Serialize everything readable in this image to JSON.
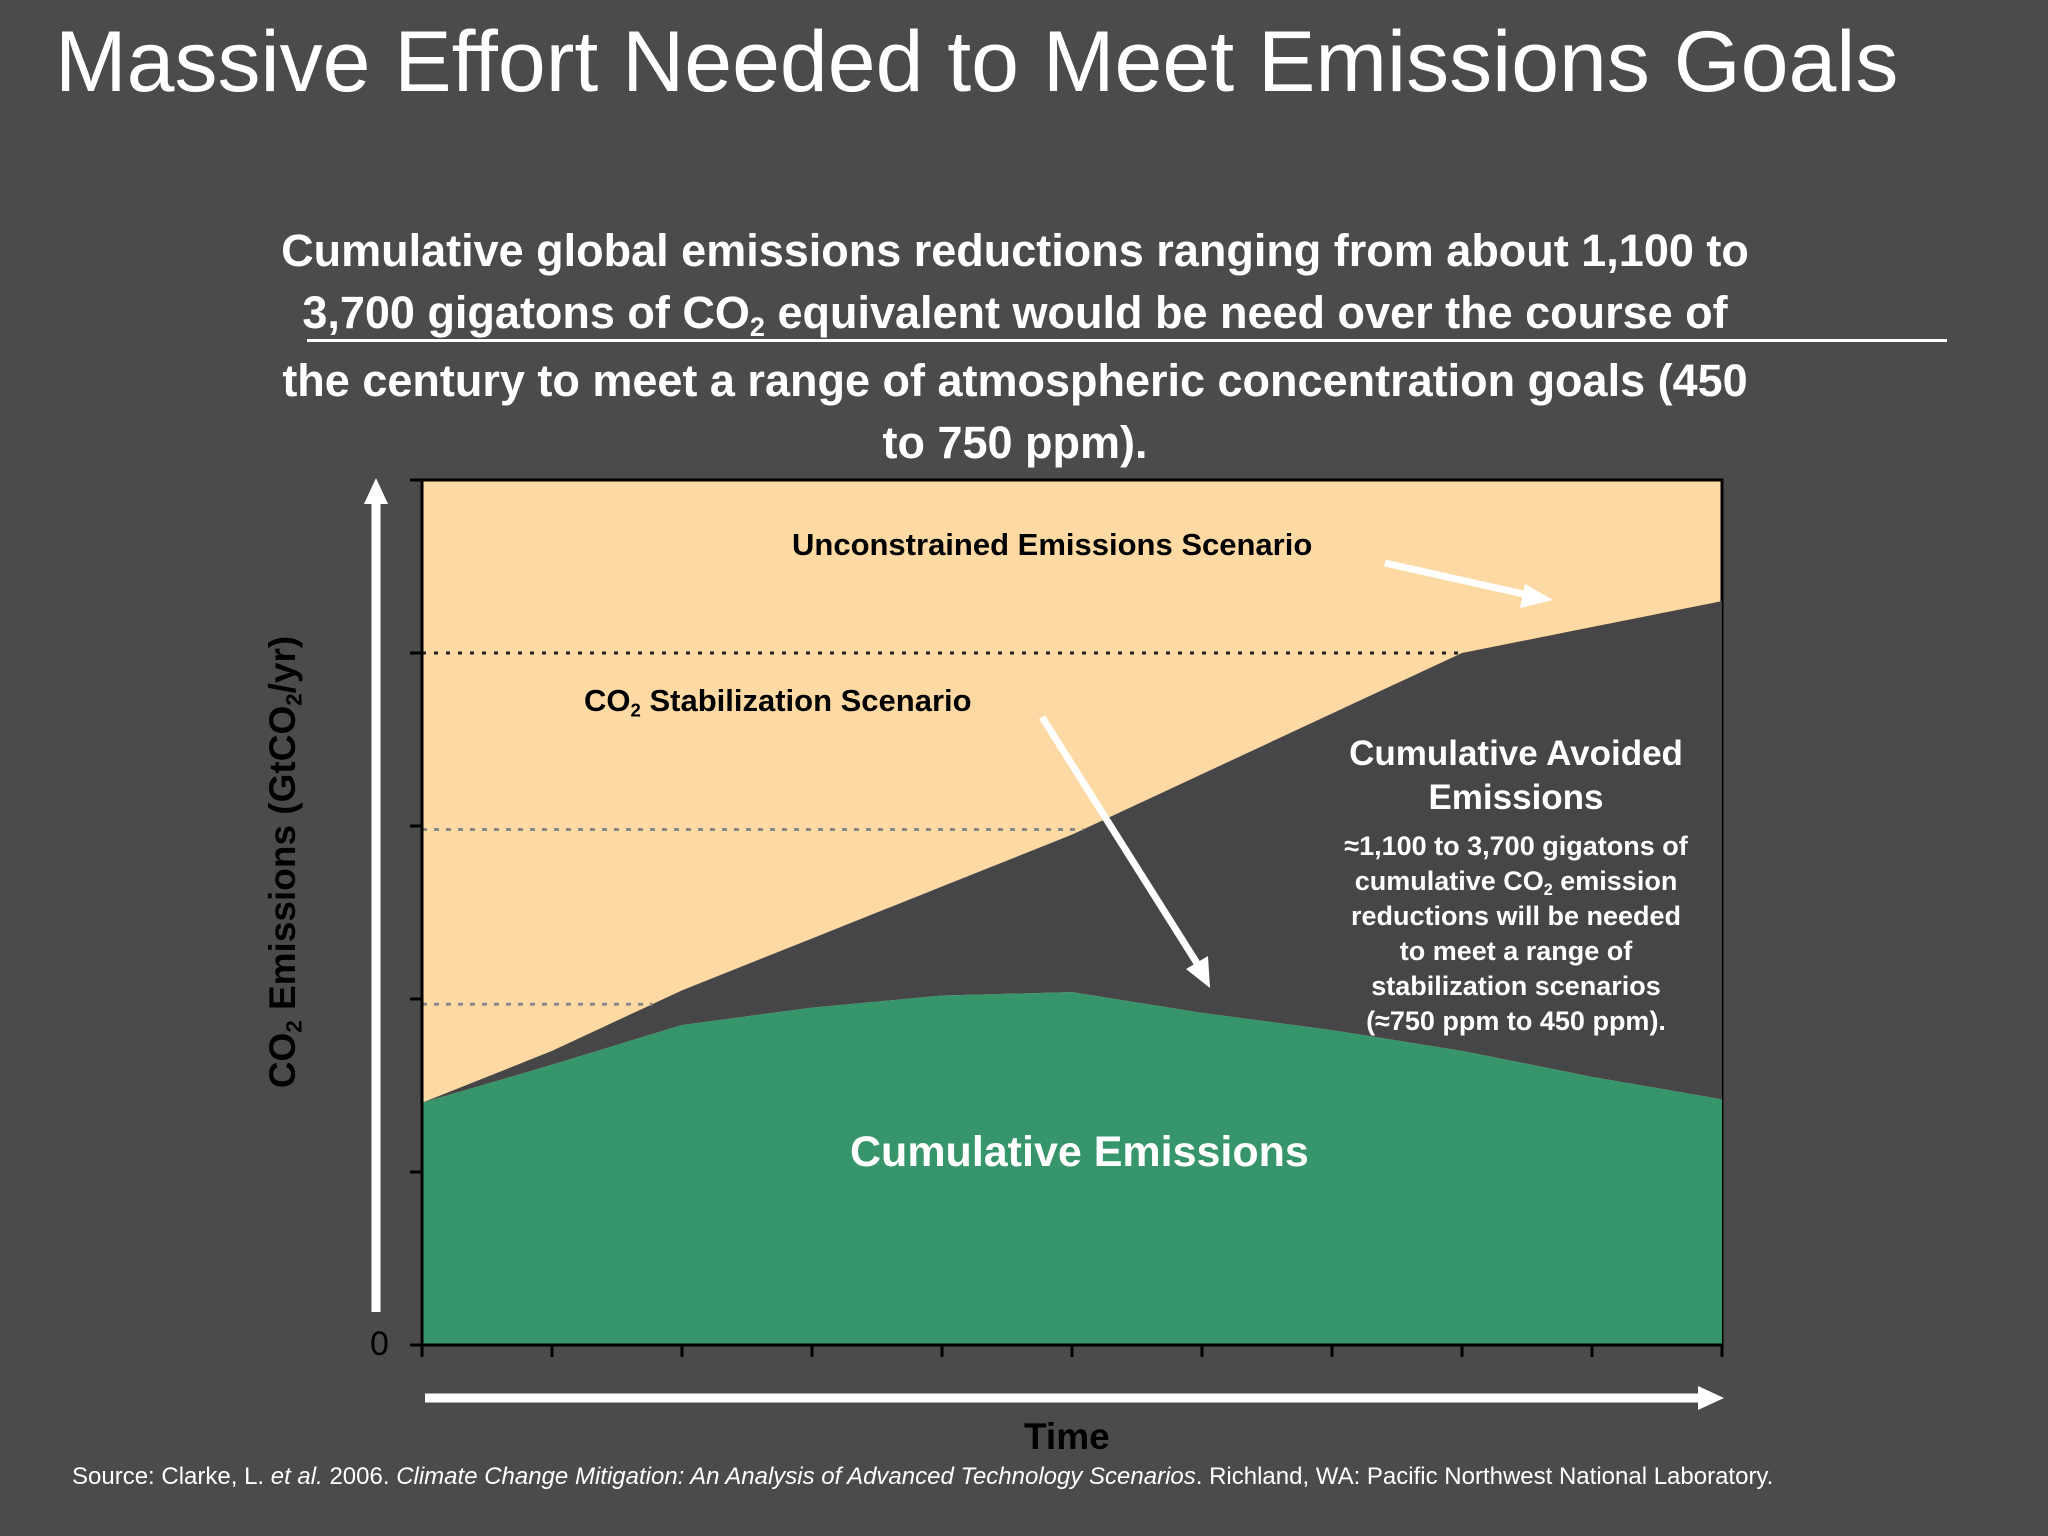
{
  "slide": {
    "title": "Massive Effort Needed to Meet Emissions Goals",
    "subtitle": {
      "line1": "Cumulative global emissions reductions ranging from about 1,100 to",
      "line2_pre": "3,700 gigatons of CO",
      "line2_sub": "2",
      "line2_post": " equivalent would be need over the course of",
      "line3": "the century to meet a range of atmospheric concentration goals (450",
      "line4": "to 750 ppm)."
    },
    "source": {
      "pre": "Source: Clarke, L. ",
      "etal": "et al.",
      "year": " 2006. ",
      "book": "Climate Change Mitigation: An Analysis of Advanced Technology Scenarios",
      "post": ". Richland, WA: Pacific Northwest National Laboratory."
    }
  },
  "colors": {
    "background": "#4b4b4b",
    "unconstrained_area": "#fdd9a3",
    "avoided_area": "#464548",
    "cumulative_area": "#36956a",
    "text_dark": "#000000",
    "text_light": "#ffffff"
  },
  "chart_data": {
    "type": "area",
    "xlabel": "Time",
    "ylabel_pre": "CO",
    "ylabel_sub1": "2",
    "ylabel_mid": " Emissions (GtCO",
    "ylabel_sub2": "2",
    "ylabel_post": "/yr)",
    "y_zero_label": "0",
    "x": [
      0,
      1,
      2,
      3,
      4,
      5,
      6,
      7,
      8,
      9,
      10
    ],
    "ylim": [
      0,
      5
    ],
    "x_ticks": 11,
    "y_ticks": 5,
    "reference_lines": [
      4.0,
      2.98,
      1.97
    ],
    "series": [
      {
        "name": "Unconstrained Emissions Scenario",
        "values": [
          1.4,
          1.7,
          2.05,
          2.35,
          2.65,
          2.95,
          3.3,
          3.65,
          4.0,
          4.15,
          4.3
        ]
      },
      {
        "name": "CO2 Stabilization Scenario",
        "values": [
          1.4,
          1.62,
          1.85,
          1.95,
          2.02,
          2.04,
          1.92,
          1.82,
          1.7,
          1.55,
          1.42
        ]
      }
    ],
    "annotations": {
      "unconstrained": "Unconstrained Emissions Scenario",
      "stabilization_pre": "CO",
      "stabilization_sub": "2",
      "stabilization_post": " Stabilization Scenario",
      "avoided_title_1": "Cumulative Avoided",
      "avoided_title_2": "Emissions",
      "avoided_l1": "≈1,100 to 3,700 gigatons of",
      "avoided_l2_pre": "cumulative CO",
      "avoided_l2_sub": "2",
      "avoided_l2_post": " emission",
      "avoided_l3": "reductions will be needed",
      "avoided_l4": "to meet a range of",
      "avoided_l5": "stabilization scenarios",
      "avoided_l6": "(≈750 ppm to 450 ppm).",
      "cumulative": "Cumulative Emissions"
    }
  }
}
